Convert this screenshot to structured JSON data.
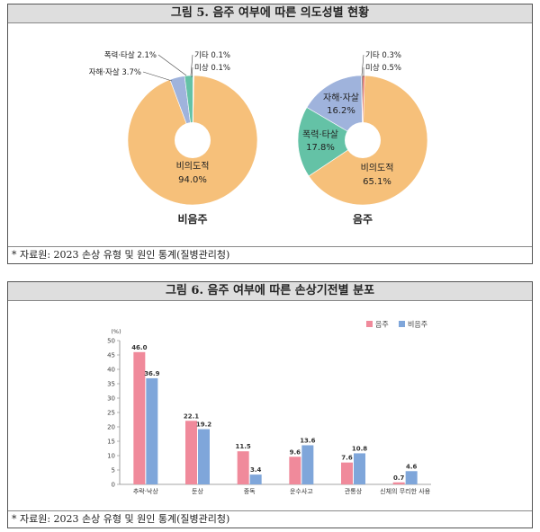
{
  "figure5": {
    "title": "그림 5. 음주 여부에 따른 의도성별 현황",
    "source": "* 자료원: 2023 손상 유형 및 원인 통계(질병관리청)",
    "chart_data": {
      "type": "pie",
      "charts": [
        {
          "name": "비음주",
          "slices": [
            {
              "label": "비의도적",
              "value": 94.0,
              "value_text": "94.0%",
              "color": "#f6c07a"
            },
            {
              "label": "자해·자살",
              "value": 3.7,
              "value_text": "3.7%",
              "color": "#9fb3dc"
            },
            {
              "label": "폭력·타살",
              "value": 2.1,
              "value_text": "2.1%",
              "color": "#64c2a6"
            },
            {
              "label": "기타",
              "value": 0.1,
              "value_text": "0.1%",
              "color": "#333333"
            },
            {
              "label": "미상",
              "value": 0.1,
              "value_text": "0.1%",
              "color": "#e0594f"
            }
          ]
        },
        {
          "name": "음주",
          "slices": [
            {
              "label": "비의도적",
              "value": 65.1,
              "value_text": "65.1%",
              "color": "#f6c07a"
            },
            {
              "label": "폭력·타살",
              "value": 17.8,
              "value_text": "17.8%",
              "color": "#64c2a6"
            },
            {
              "label": "자해·자살",
              "value": 16.2,
              "value_text": "16.2%",
              "color": "#9fb3dc"
            },
            {
              "label": "기타",
              "value": 0.3,
              "value_text": "0.3%",
              "color": "#333333"
            },
            {
              "label": "미상",
              "value": 0.5,
              "value_text": "0.5%",
              "color": "#e0594f"
            }
          ]
        }
      ]
    }
  },
  "figure6": {
    "title": "그림 6. 음주 여부에 따른 손상기전별 분포",
    "source": "* 자료원: 2023 손상 유형 및 원인 통계(질병관리청)",
    "chart_data": {
      "type": "bar",
      "unit": "(%)",
      "categories": [
        "추락·낙상",
        "둔상",
        "중독",
        "운수사고",
        "관통상",
        "신체의 무리한 사용"
      ],
      "series": [
        {
          "name": "음주",
          "color": "#f08a9b",
          "values": [
            46.0,
            22.1,
            11.5,
            9.6,
            7.6,
            0.7
          ]
        },
        {
          "name": "비음주",
          "color": "#7fa6da",
          "values": [
            36.9,
            19.2,
            3.4,
            13.6,
            10.8,
            4.6
          ]
        }
      ],
      "ylim": [
        0,
        50
      ],
      "yticks": [
        0,
        5,
        10,
        15,
        20,
        25,
        30,
        35,
        40,
        45,
        50
      ],
      "legend": "top-right",
      "grid": false
    }
  }
}
